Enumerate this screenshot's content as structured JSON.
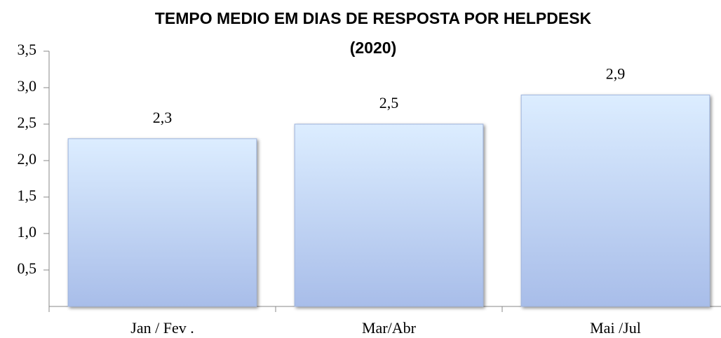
{
  "chart_data": {
    "type": "bar",
    "title": "TEMPO MEDIO EM DIAS DE RESPOSTA POR HELPDESK",
    "subtitle": "(2020)",
    "categories": [
      "Jan / Fev .",
      "Mar/Abr",
      "Mai /Jul"
    ],
    "values": [
      2.3,
      2.5,
      2.9
    ],
    "value_labels": [
      "2,3",
      "2,5",
      "2,9"
    ],
    "color": "#bcd3f3",
    "ylim": [
      0,
      3.5
    ],
    "yticks": [
      {
        "value": 0.5,
        "label": "0,5"
      },
      {
        "value": 1,
        "label": "1,0"
      },
      {
        "value": 1.5,
        "label": "1,5"
      },
      {
        "value": 2,
        "label": "2,0"
      },
      {
        "value": 2.5,
        "label": "2,5"
      },
      {
        "value": 3,
        "label": "3,0"
      },
      {
        "value": 3.5,
        "label": "3,5"
      }
    ],
    "grid": false
  }
}
